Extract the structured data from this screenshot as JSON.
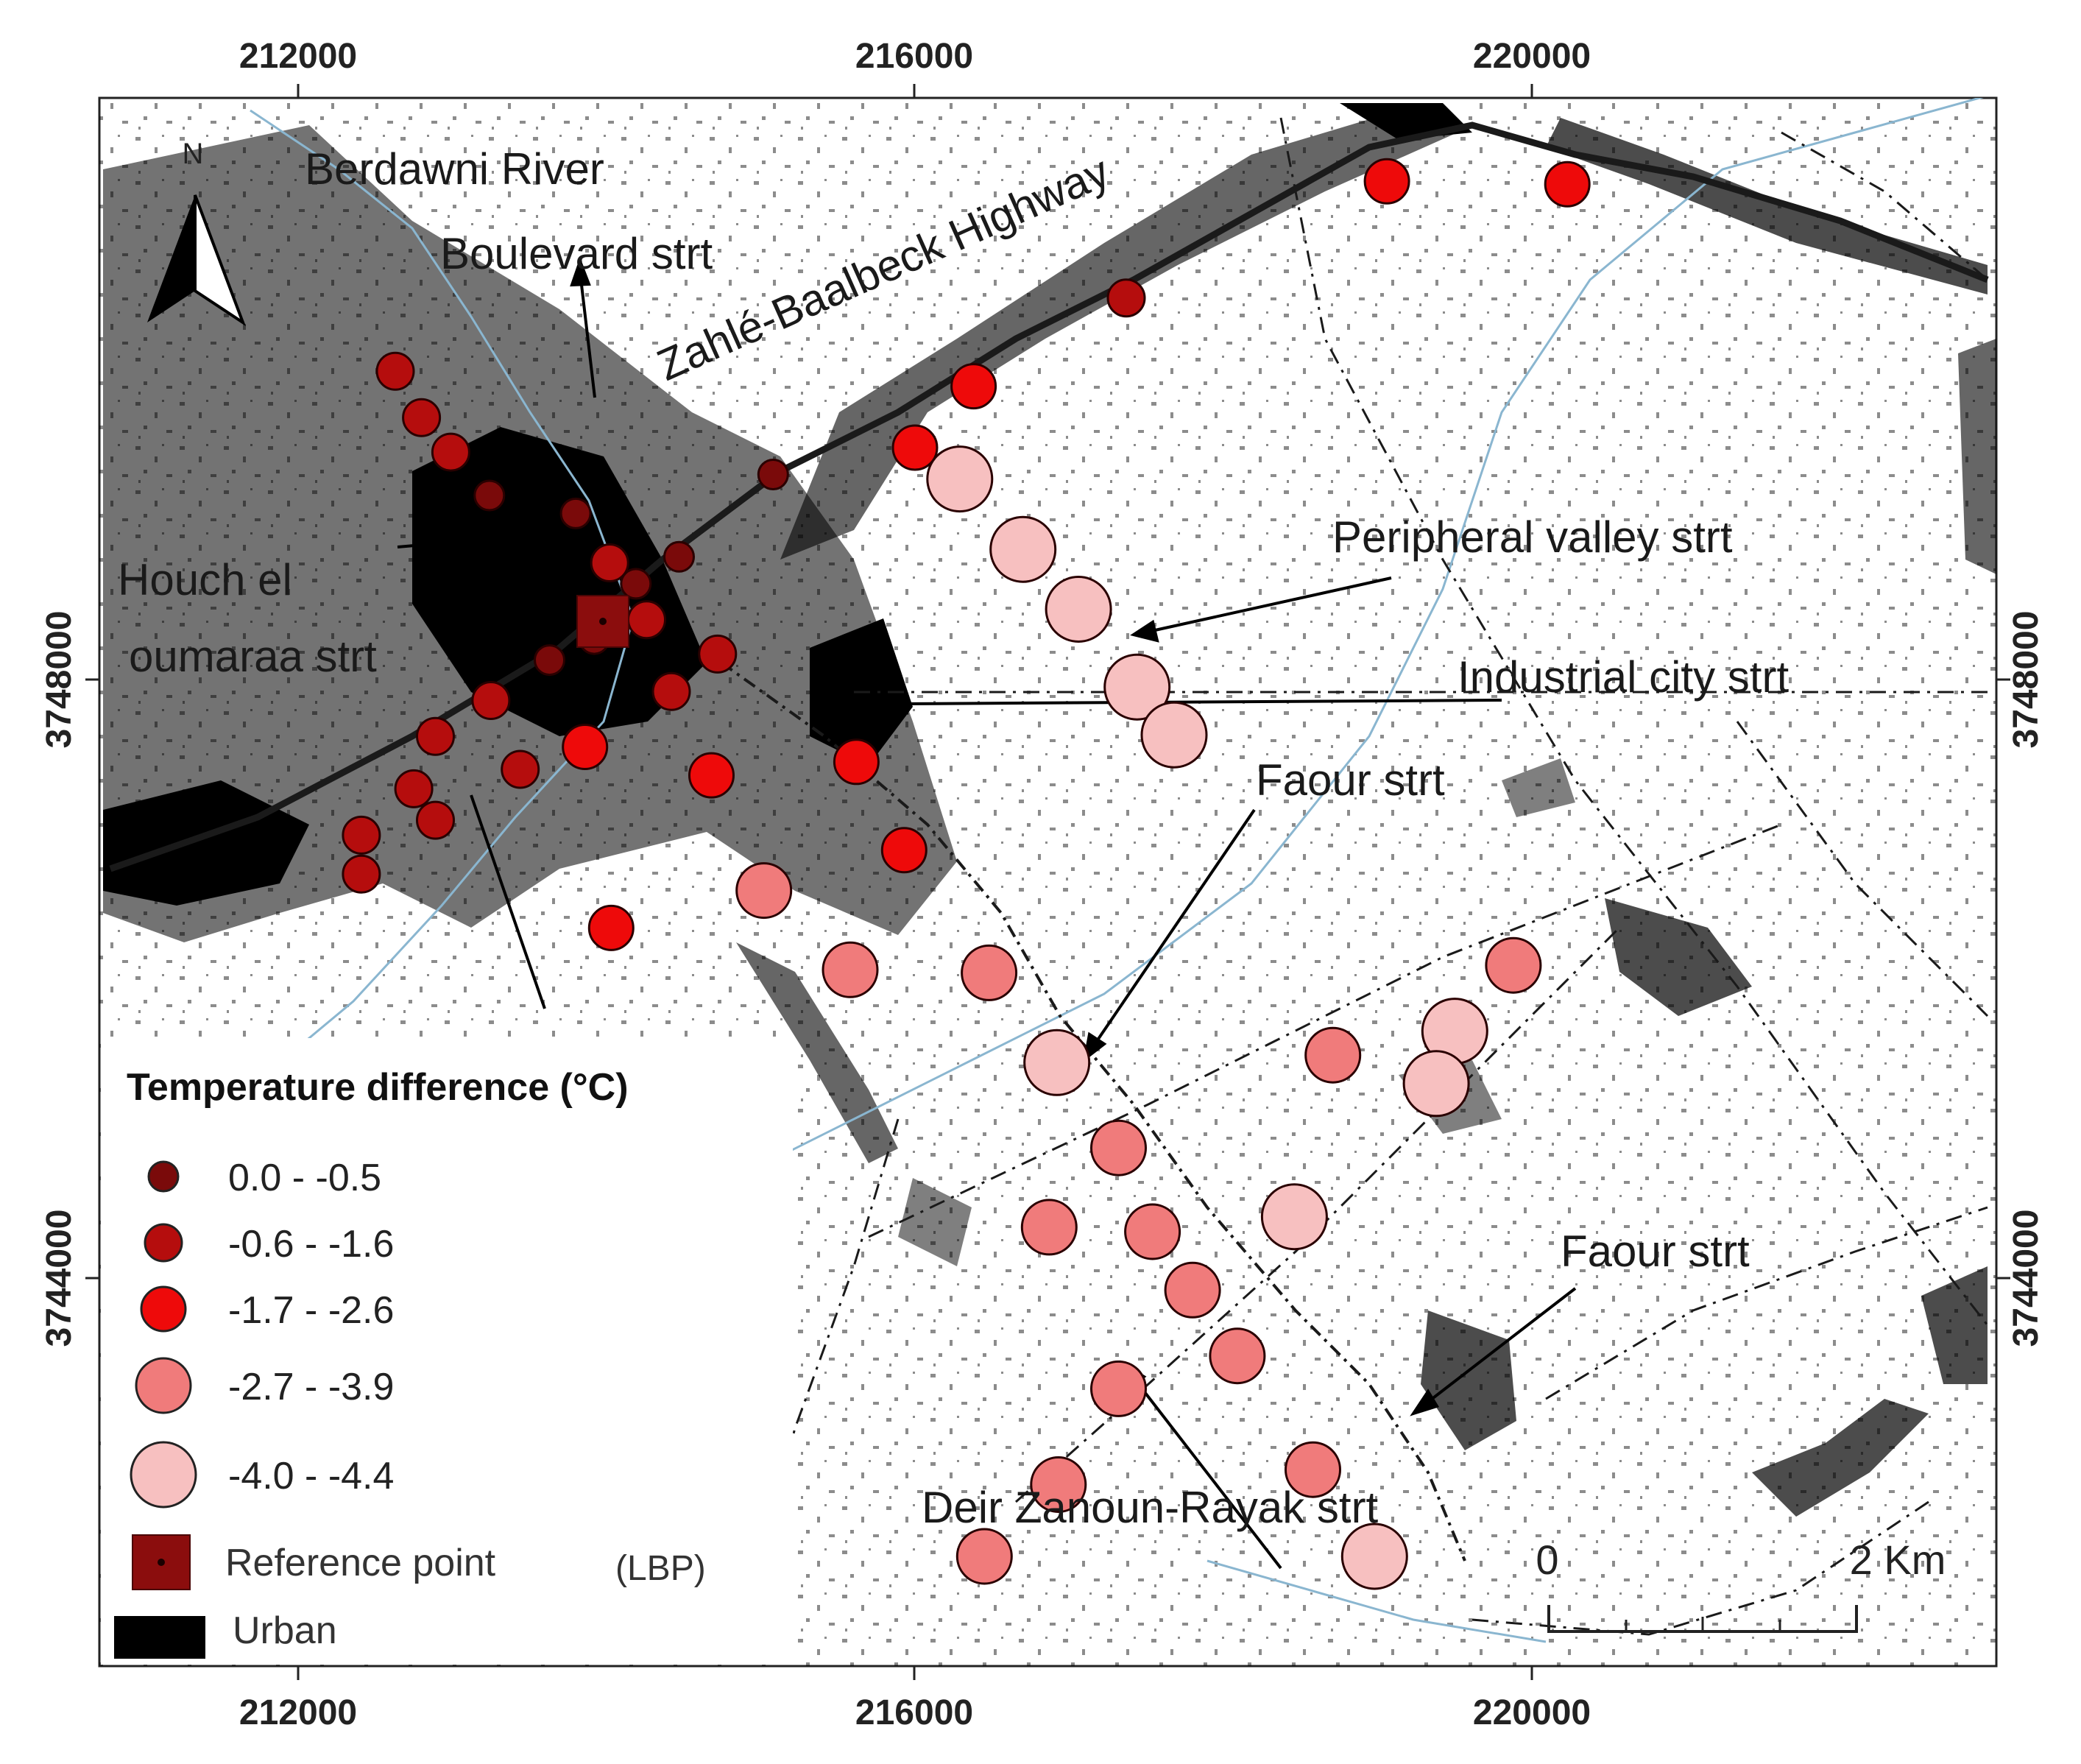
{
  "map": {
    "x_ticks": [
      "212000",
      "216000",
      "220000"
    ],
    "y_ticks": [
      "3748000",
      "3744000"
    ],
    "north_label": "N",
    "colors": {
      "class1": "#7a0a0a",
      "class2": "#b50d0d",
      "class3": "#ee0a0a",
      "class4": "#f07b7b",
      "class5": "#f7c0c0",
      "reference": "#8b0d0d",
      "urban": "#000000",
      "river": "#8ab6d0"
    },
    "labels": {
      "berdawni": "Berdawni River",
      "boulevard": "Boulevard strt",
      "highway": "Zahlé-Baalbeck Highway",
      "peripheral": "Peripheral valley strt",
      "houch_1": "Houch el",
      "houch_2": "oumaraa strt",
      "industrial": "Industrial city strt",
      "faour_1": "Faour strt",
      "faour_2": "Faour strt",
      "deir": "Deir Zanoun-Rayak strt"
    },
    "scalebar": {
      "zero": "0",
      "max": "2 Km"
    }
  },
  "legend": {
    "title": "Temperature difference (°C)",
    "classes": [
      "0.0 - -0.5",
      "-0.6 - -1.6",
      "-1.7 - -2.6",
      "-2.7 - -3.9",
      "-4.0 - -4.4"
    ],
    "reference": "Reference point",
    "lbp": "(LBP)",
    "urban": "Urban"
  },
  "points": [
    {
      "c": 3,
      "e": 219060,
      "n": 3751330
    },
    {
      "c": 3,
      "e": 220230,
      "n": 3751310
    },
    {
      "c": 2,
      "e": 217370,
      "n": 3750550
    },
    {
      "c": 3,
      "e": 216380,
      "n": 3749960
    },
    {
      "c": 3,
      "e": 216000,
      "n": 3749550
    },
    {
      "c": 5,
      "e": 216290,
      "n": 3749340
    },
    {
      "c": 1,
      "e": 215080,
      "n": 3749370
    },
    {
      "c": 2,
      "e": 212630,
      "n": 3750060
    },
    {
      "c": 2,
      "e": 212800,
      "n": 3749750
    },
    {
      "c": 2,
      "e": 212990,
      "n": 3749520
    },
    {
      "c": 1,
      "e": 213240,
      "n": 3749230
    },
    {
      "c": 1,
      "e": 213800,
      "n": 3749110
    },
    {
      "c": 2,
      "e": 214020,
      "n": 3748780
    },
    {
      "c": 1,
      "e": 214470,
      "n": 3748820
    },
    {
      "c": 1,
      "e": 214190,
      "n": 3748640
    },
    {
      "c": 2,
      "e": 214260,
      "n": 3748400
    },
    {
      "c": 1,
      "e": 213920,
      "n": 3748270
    },
    {
      "c": 1,
      "e": 213630,
      "n": 3748130
    },
    {
      "c": 2,
      "e": 214720,
      "n": 3748170
    },
    {
      "c": 2,
      "e": 214420,
      "n": 3747920
    },
    {
      "c": 2,
      "e": 213250,
      "n": 3747860
    },
    {
      "c": 3,
      "e": 213860,
      "n": 3747550
    },
    {
      "c": 2,
      "e": 212890,
      "n": 3747620
    },
    {
      "c": 2,
      "e": 213440,
      "n": 3747400
    },
    {
      "c": 2,
      "e": 212750,
      "n": 3747270
    },
    {
      "c": 2,
      "e": 212890,
      "n": 3747060
    },
    {
      "c": 2,
      "e": 212410,
      "n": 3746960
    },
    {
      "c": 2,
      "e": 212410,
      "n": 3746700
    },
    {
      "c": 3,
      "e": 214680,
      "n": 3747360
    },
    {
      "c": 3,
      "e": 215620,
      "n": 3747450
    },
    {
      "c": 3,
      "e": 215930,
      "n": 3746860
    },
    {
      "c": 3,
      "e": 214030,
      "n": 3746340
    },
    {
      "c": 4,
      "e": 215020,
      "n": 3746590
    },
    {
      "c": 5,
      "e": 216700,
      "n": 3748870
    },
    {
      "c": 5,
      "e": 217060,
      "n": 3748470
    },
    {
      "c": 5,
      "e": 217440,
      "n": 3747950
    },
    {
      "c": 5,
      "e": 217680,
      "n": 3747630
    },
    {
      "c": 4,
      "e": 215580,
      "n": 3746060
    },
    {
      "c": 4,
      "e": 216480,
      "n": 3746040
    },
    {
      "c": 5,
      "e": 216920,
      "n": 3745440
    },
    {
      "c": 4,
      "e": 218710,
      "n": 3745490
    },
    {
      "c": 4,
      "e": 219880,
      "n": 3746090
    },
    {
      "c": 5,
      "e": 219500,
      "n": 3745650
    },
    {
      "c": 5,
      "e": 219380,
      "n": 3745300
    },
    {
      "c": 4,
      "e": 217320,
      "n": 3744870
    },
    {
      "c": 4,
      "e": 216870,
      "n": 3744340
    },
    {
      "c": 4,
      "e": 217540,
      "n": 3744310
    },
    {
      "c": 5,
      "e": 218460,
      "n": 3744410
    },
    {
      "c": 4,
      "e": 217800,
      "n": 3743920
    },
    {
      "c": 4,
      "e": 218090,
      "n": 3743480
    },
    {
      "c": 4,
      "e": 217320,
      "n": 3743260
    },
    {
      "c": 4,
      "e": 216930,
      "n": 3742620
    },
    {
      "c": 4,
      "e": 218580,
      "n": 3742720
    },
    {
      "c": 4,
      "e": 216450,
      "n": 3742140
    },
    {
      "c": 5,
      "e": 218980,
      "n": 3742140
    }
  ]
}
